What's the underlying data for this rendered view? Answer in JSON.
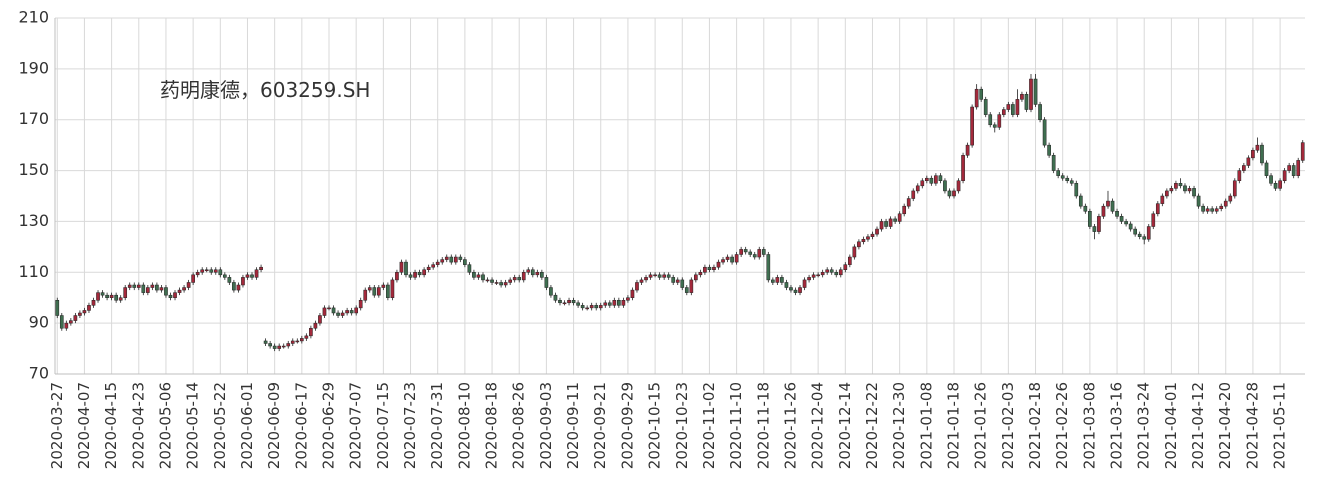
{
  "chart_data": {
    "type": "candlestick",
    "annotation": "药明康德，603259.SH",
    "up_color": "#a3293b",
    "down_color": "#3f6e50",
    "ylim": [
      70,
      210
    ],
    "yticks": [
      70,
      90,
      110,
      130,
      150,
      170,
      190,
      210
    ],
    "grid": true,
    "categories": [
      "2020-03-27",
      null,
      null,
      null,
      null,
      null,
      "2020-04-07",
      null,
      null,
      null,
      null,
      null,
      "2020-04-15",
      null,
      null,
      null,
      null,
      null,
      "2020-04-23",
      null,
      null,
      null,
      null,
      null,
      "2020-05-06",
      null,
      null,
      null,
      null,
      null,
      "2020-05-14",
      null,
      null,
      null,
      null,
      null,
      "2020-05-22",
      null,
      null,
      null,
      null,
      null,
      "2020-06-01",
      null,
      null,
      null,
      null,
      null,
      "2020-06-09",
      null,
      null,
      null,
      null,
      null,
      "2020-06-17",
      null,
      null,
      null,
      null,
      null,
      "2020-06-29",
      null,
      null,
      null,
      null,
      null,
      "2020-07-07",
      null,
      null,
      null,
      null,
      null,
      "2020-07-15",
      null,
      null,
      null,
      null,
      null,
      "2020-07-23",
      null,
      null,
      null,
      null,
      null,
      "2020-07-31",
      null,
      null,
      null,
      null,
      null,
      "2020-08-10",
      null,
      null,
      null,
      null,
      null,
      "2020-08-18",
      null,
      null,
      null,
      null,
      null,
      "2020-08-26",
      null,
      null,
      null,
      null,
      null,
      "2020-09-03",
      null,
      null,
      null,
      null,
      null,
      "2020-09-11",
      null,
      null,
      null,
      null,
      null,
      "2020-09-21",
      null,
      null,
      null,
      null,
      null,
      "2020-09-29",
      null,
      null,
      null,
      null,
      null,
      "2020-10-15",
      null,
      null,
      null,
      null,
      null,
      "2020-10-23",
      null,
      null,
      null,
      null,
      null,
      "2020-11-02",
      null,
      null,
      null,
      null,
      null,
      "2020-11-10",
      null,
      null,
      null,
      null,
      null,
      "2020-11-18",
      null,
      null,
      null,
      null,
      null,
      "2020-11-26",
      null,
      null,
      null,
      null,
      null,
      "2020-12-04",
      null,
      null,
      null,
      null,
      null,
      "2020-12-14",
      null,
      null,
      null,
      null,
      null,
      "2020-12-22",
      null,
      null,
      null,
      null,
      null,
      "2020-12-30",
      null,
      null,
      null,
      null,
      null,
      "2021-01-08",
      null,
      null,
      null,
      null,
      null,
      "2021-01-18",
      null,
      null,
      null,
      null,
      null,
      "2021-01-26",
      null,
      null,
      null,
      null,
      null,
      "2021-02-03",
      null,
      null,
      null,
      null,
      null,
      "2021-02-18",
      null,
      null,
      null,
      null,
      null,
      "2021-02-26",
      null,
      null,
      null,
      null,
      null,
      "2021-03-08",
      null,
      null,
      null,
      null,
      null,
      "2021-03-16",
      null,
      null,
      null,
      null,
      null,
      "2021-03-24",
      null,
      null,
      null,
      null,
      null,
      "2021-04-01",
      null,
      null,
      null,
      null,
      null,
      "2021-04-12",
      null,
      null,
      null,
      null,
      null,
      "2021-04-20",
      null,
      null,
      null,
      null,
      null,
      "2021-04-28",
      null,
      null,
      null,
      null,
      null,
      "2021-05-11",
      null,
      null,
      null,
      null,
      null
    ],
    "open": [
      99,
      93,
      88,
      90,
      91,
      93,
      94,
      95,
      97,
      99,
      102,
      101,
      100,
      101,
      99,
      100,
      104,
      105,
      104,
      105,
      102,
      104,
      105,
      103,
      104,
      101,
      100,
      102,
      103,
      104,
      106,
      109,
      110,
      111,
      111,
      110,
      111,
      109,
      108,
      106,
      103,
      105,
      108,
      109,
      108,
      111,
      83,
      82,
      81,
      80,
      81,
      81,
      82,
      83,
      83,
      84,
      85,
      88,
      90,
      93,
      96,
      96,
      94,
      93,
      94,
      95,
      94,
      96,
      99,
      103,
      104,
      101,
      104,
      105,
      100,
      107,
      110,
      114,
      109,
      108,
      110,
      109,
      111,
      112,
      113,
      114,
      115,
      116,
      114,
      116,
      115,
      113,
      110,
      108,
      109,
      107,
      107,
      106,
      106,
      105,
      106,
      107,
      108,
      107,
      110,
      111,
      109,
      110,
      108,
      104,
      101,
      99,
      98,
      98,
      99,
      98,
      97,
      96,
      96,
      97,
      96,
      97,
      98,
      97,
      99,
      97,
      99,
      100,
      103,
      106,
      107,
      108,
      109,
      109,
      108,
      109,
      108,
      106,
      107,
      104,
      102,
      107,
      109,
      110,
      112,
      111,
      112,
      114,
      115,
      116,
      114,
      117,
      119,
      118,
      117,
      116,
      119,
      117,
      107,
      106,
      108,
      106,
      104,
      103,
      102,
      104,
      107,
      108,
      109,
      109,
      110,
      111,
      110,
      109,
      111,
      113,
      116,
      120,
      122,
      123,
      124,
      125,
      127,
      130,
      128,
      131,
      130,
      133,
      136,
      139,
      142,
      144,
      146,
      147,
      145,
      148,
      146,
      142,
      140,
      142,
      146,
      156,
      160,
      175,
      182,
      178,
      172,
      168,
      167,
      172,
      174,
      176,
      172,
      178,
      180,
      174,
      186,
      176,
      170,
      160,
      156,
      150,
      148,
      147,
      146,
      145,
      140,
      136,
      134,
      128,
      126,
      132,
      136,
      138,
      134,
      132,
      130,
      129,
      127,
      125,
      124,
      123,
      128,
      133,
      137,
      140,
      142,
      143,
      145,
      144,
      142,
      143,
      140,
      136,
      134,
      135,
      134,
      135,
      136,
      138,
      140,
      146,
      150,
      152,
      155,
      158,
      160,
      153,
      148,
      145,
      143,
      146,
      150,
      152,
      148,
      154
    ],
    "high": [
      100,
      94,
      91,
      92,
      94,
      95,
      96,
      98,
      100,
      103,
      103,
      102,
      102,
      102,
      101,
      105,
      106,
      106,
      106,
      106,
      105,
      106,
      106,
      105,
      105,
      102,
      103,
      104,
      105,
      107,
      110,
      111,
      112,
      112,
      112,
      112,
      112,
      110,
      109,
      107,
      106,
      109,
      110,
      110,
      112,
      113,
      84,
      83,
      82,
      82,
      82,
      83,
      84,
      84,
      85,
      86,
      89,
      91,
      94,
      97,
      97,
      97,
      95,
      95,
      96,
      96,
      97,
      100,
      104,
      105,
      105,
      105,
      106,
      106,
      108,
      111,
      115,
      115,
      110,
      111,
      111,
      112,
      113,
      114,
      115,
      116,
      117,
      117,
      117,
      117,
      116,
      114,
      111,
      110,
      110,
      108,
      108,
      107,
      107,
      107,
      108,
      109,
      109,
      111,
      112,
      112,
      111,
      111,
      109,
      105,
      102,
      100,
      99,
      100,
      100,
      99,
      98,
      97,
      98,
      98,
      98,
      99,
      99,
      100,
      100,
      100,
      101,
      104,
      107,
      108,
      109,
      110,
      110,
      110,
      110,
      110,
      109,
      108,
      108,
      105,
      108,
      110,
      111,
      113,
      113,
      113,
      115,
      116,
      117,
      117,
      118,
      120,
      120,
      119,
      118,
      120,
      120,
      118,
      108,
      109,
      109,
      107,
      105,
      104,
      105,
      108,
      109,
      110,
      110,
      111,
      112,
      112,
      111,
      112,
      114,
      117,
      121,
      123,
      124,
      125,
      126,
      128,
      131,
      131,
      132,
      132,
      134,
      137,
      140,
      143,
      145,
      147,
      148,
      148,
      149,
      149,
      147,
      143,
      143,
      147,
      157,
      161,
      176,
      184,
      183,
      179,
      173,
      169,
      173,
      175,
      177,
      177,
      182,
      181,
      181,
      188,
      188,
      177,
      171,
      161,
      157,
      151,
      149,
      148,
      147,
      146,
      141,
      137,
      135,
      129,
      133,
      137,
      142,
      139,
      135,
      133,
      131,
      130,
      128,
      126,
      125,
      129,
      134,
      138,
      141,
      143,
      144,
      146,
      147,
      145,
      144,
      144,
      141,
      137,
      136,
      136,
      136,
      137,
      139,
      141,
      147,
      151,
      153,
      156,
      159,
      163,
      161,
      154,
      149,
      146,
      147,
      151,
      153,
      153,
      155,
      162
    ],
    "low": [
      92,
      87,
      87,
      89,
      90,
      92,
      93,
      94,
      96,
      98,
      100,
      99,
      99,
      98,
      98,
      99,
      103,
      103,
      103,
      101,
      101,
      103,
      102,
      102,
      100,
      99,
      99,
      101,
      102,
      103,
      105,
      108,
      109,
      110,
      109,
      109,
      108,
      107,
      105,
      102,
      102,
      104,
      107,
      107,
      107,
      110,
      81,
      80,
      79,
      79,
      80,
      80,
      81,
      82,
      82,
      83,
      84,
      87,
      89,
      92,
      95,
      93,
      92,
      92,
      93,
      93,
      93,
      95,
      98,
      102,
      100,
      100,
      103,
      99,
      99,
      106,
      109,
      108,
      107,
      107,
      108,
      108,
      110,
      111,
      112,
      113,
      114,
      113,
      113,
      114,
      112,
      109,
      107,
      107,
      106,
      106,
      105,
      105,
      104,
      104,
      105,
      106,
      106,
      106,
      109,
      108,
      108,
      107,
      103,
      100,
      98,
      97,
      97,
      97,
      97,
      96,
      95,
      95,
      95,
      95,
      95,
      96,
      96,
      96,
      96,
      96,
      98,
      99,
      102,
      105,
      106,
      107,
      108,
      107,
      107,
      107,
      105,
      105,
      103,
      101,
      101,
      106,
      108,
      109,
      110,
      110,
      111,
      113,
      114,
      113,
      113,
      116,
      117,
      116,
      115,
      115,
      116,
      106,
      105,
      105,
      105,
      103,
      102,
      101,
      101,
      103,
      106,
      107,
      108,
      108,
      109,
      109,
      108,
      108,
      110,
      112,
      115,
      119,
      121,
      122,
      123,
      124,
      126,
      127,
      127,
      129,
      129,
      132,
      135,
      138,
      141,
      143,
      145,
      144,
      144,
      145,
      141,
      139,
      139,
      141,
      145,
      155,
      159,
      174,
      177,
      171,
      167,
      165,
      166,
      171,
      173,
      171,
      171,
      177,
      173,
      173,
      175,
      169,
      159,
      155,
      149,
      147,
      146,
      145,
      144,
      139,
      135,
      133,
      127,
      123,
      125,
      131,
      135,
      133,
      131,
      129,
      128,
      126,
      124,
      123,
      121,
      122,
      127,
      132,
      136,
      139,
      141,
      142,
      143,
      141,
      141,
      139,
      135,
      133,
      133,
      133,
      133,
      134,
      135,
      137,
      139,
      145,
      149,
      151,
      154,
      157,
      152,
      147,
      144,
      142,
      142,
      145,
      149,
      147,
      147,
      153
    ],
    "close": [
      93,
      88,
      90,
      91,
      93,
      94,
      95,
      97,
      99,
      102,
      101,
      100,
      101,
      99,
      100,
      104,
      105,
      104,
      105,
      102,
      104,
      105,
      103,
      104,
      101,
      100,
      102,
      103,
      104,
      106,
      109,
      110,
      111,
      111,
      110,
      111,
      109,
      108,
      106,
      103,
      105,
      108,
      109,
      108,
      111,
      112,
      82,
      81,
      80,
      81,
      81,
      82,
      83,
      83,
      84,
      85,
      88,
      90,
      93,
      96,
      96,
      94,
      93,
      94,
      95,
      94,
      96,
      99,
      103,
      104,
      101,
      104,
      105,
      100,
      107,
      110,
      114,
      109,
      108,
      110,
      109,
      111,
      112,
      113,
      114,
      115,
      116,
      114,
      116,
      115,
      113,
      110,
      108,
      109,
      107,
      107,
      106,
      106,
      105,
      106,
      107,
      108,
      107,
      110,
      111,
      109,
      110,
      108,
      104,
      101,
      99,
      98,
      98,
      99,
      98,
      97,
      96,
      96,
      97,
      96,
      97,
      98,
      97,
      99,
      97,
      99,
      100,
      103,
      106,
      107,
      108,
      109,
      109,
      108,
      109,
      108,
      106,
      107,
      104,
      102,
      107,
      109,
      110,
      112,
      111,
      112,
      114,
      115,
      116,
      114,
      117,
      119,
      118,
      117,
      116,
      119,
      117,
      107,
      106,
      108,
      106,
      104,
      103,
      102,
      104,
      107,
      108,
      109,
      109,
      110,
      111,
      110,
      109,
      111,
      113,
      116,
      120,
      122,
      123,
      124,
      125,
      127,
      130,
      128,
      131,
      130,
      133,
      136,
      139,
      142,
      144,
      146,
      147,
      145,
      148,
      146,
      142,
      140,
      142,
      146,
      156,
      160,
      175,
      182,
      178,
      172,
      168,
      167,
      172,
      174,
      176,
      172,
      178,
      180,
      174,
      186,
      176,
      170,
      160,
      156,
      150,
      148,
      147,
      146,
      145,
      140,
      136,
      134,
      128,
      126,
      132,
      136,
      138,
      134,
      132,
      130,
      129,
      127,
      125,
      124,
      123,
      128,
      133,
      137,
      140,
      142,
      143,
      145,
      144,
      142,
      143,
      140,
      136,
      134,
      135,
      134,
      135,
      136,
      138,
      140,
      146,
      150,
      152,
      155,
      158,
      160,
      153,
      148,
      145,
      143,
      146,
      150,
      152,
      148,
      154,
      161
    ]
  }
}
